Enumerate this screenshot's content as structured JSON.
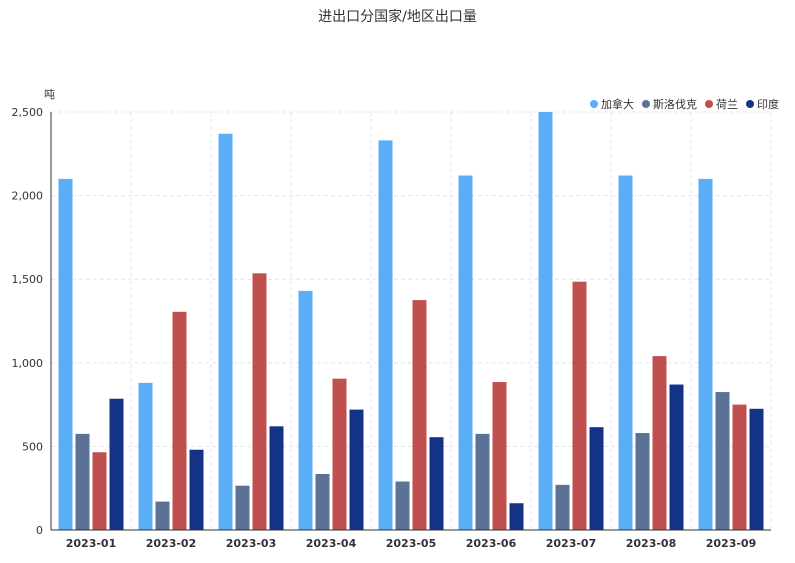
{
  "chart_data": {
    "type": "bar",
    "title": "进出口分国家/地区出口量",
    "unit": "吨",
    "categories": [
      "2023-01",
      "2023-02",
      "2023-03",
      "2023-04",
      "2023-05",
      "2023-06",
      "2023-07",
      "2023-08",
      "2023-09"
    ],
    "series": [
      {
        "name": "加拿大",
        "color": "#5aaef5",
        "values": [
          2100,
          880,
          2370,
          1430,
          2330,
          2120,
          2500,
          2120,
          2100
        ]
      },
      {
        "name": "斯洛伐克",
        "color": "#5b7196",
        "values": [
          575,
          170,
          265,
          335,
          290,
          575,
          270,
          580,
          825
        ]
      },
      {
        "name": "荷兰",
        "color": "#c0504d",
        "values": [
          465,
          1305,
          1535,
          905,
          1375,
          885,
          1485,
          1040,
          750
        ]
      },
      {
        "name": "印度",
        "color": "#143387",
        "values": [
          785,
          480,
          620,
          720,
          555,
          160,
          615,
          870,
          725
        ]
      }
    ],
    "ylim": [
      0,
      2500
    ],
    "yticks": [
      0,
      500,
      1000,
      1500,
      2000,
      2500
    ],
    "ytick_labels": [
      "0",
      "500",
      "1,000",
      "1,500",
      "2,000",
      "2,500"
    ],
    "grid": true,
    "legend_position": "top-right"
  }
}
